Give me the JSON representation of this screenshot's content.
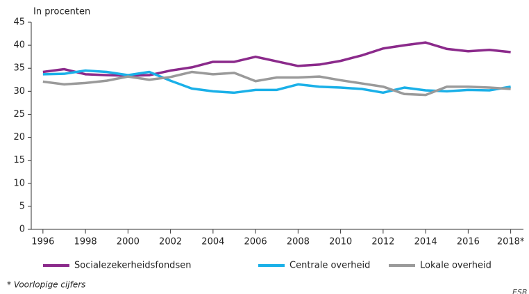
{
  "chart_data": {
    "type": "line",
    "y_label": "In procenten",
    "footnote": "* Voorlopige cijfers",
    "source": "ESB",
    "x": [
      1996,
      1997,
      1998,
      1999,
      2000,
      2001,
      2002,
      2003,
      2004,
      2005,
      2006,
      2007,
      2008,
      2009,
      2010,
      2011,
      2012,
      2013,
      2014,
      2015,
      2016,
      2017,
      2018
    ],
    "series": [
      {
        "name": "Socialezekerheidsfondsen",
        "color": "#8b2a8b",
        "values": [
          34.2,
          34.8,
          33.7,
          33.5,
          33.4,
          33.5,
          34.5,
          35.2,
          36.4,
          36.4,
          37.5,
          36.5,
          35.5,
          35.8,
          36.6,
          37.8,
          39.3,
          40.0,
          40.6,
          39.2,
          38.7,
          39.0,
          38.5
        ]
      },
      {
        "name": "Centrale overheid",
        "color": "#1ab0e8",
        "values": [
          33.7,
          33.8,
          34.5,
          34.2,
          33.5,
          34.2,
          32.3,
          30.6,
          30.0,
          29.7,
          30.3,
          30.3,
          31.5,
          31.0,
          30.8,
          30.5,
          29.7,
          30.8,
          30.2,
          30.0,
          30.3,
          30.2,
          31.0
        ]
      },
      {
        "name": "Lokale overheid",
        "color": "#9a9a9a",
        "values": [
          32.1,
          31.5,
          31.8,
          32.3,
          33.2,
          32.5,
          33.1,
          34.2,
          33.7,
          34.0,
          32.2,
          33.0,
          33.0,
          33.2,
          32.4,
          31.7,
          31.0,
          29.4,
          29.2,
          31.0,
          31.0,
          30.8,
          30.5
        ]
      }
    ],
    "xlim": [
      1995.45,
      2018.6
    ],
    "xticks": [
      1996,
      1998,
      2000,
      2002,
      2004,
      2006,
      2008,
      2010,
      2012,
      2014,
      2016,
      {
        "value": 2018,
        "label": "2018*"
      }
    ],
    "ylim": [
      0,
      45
    ],
    "yticks": [
      0,
      5,
      10,
      15,
      20,
      25,
      30,
      35,
      40,
      45
    ],
    "grid": false,
    "legend": "bottom"
  }
}
